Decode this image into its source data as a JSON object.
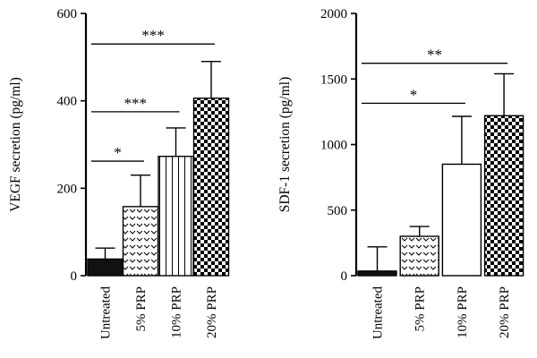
{
  "chart_data": [
    {
      "type": "bar",
      "categories": [
        "Untreated",
        "5% PRP",
        "10% PRP",
        "20% PRP"
      ],
      "values": [
        38,
        158,
        273,
        406
      ],
      "errors": [
        25,
        72,
        65,
        84
      ],
      "patterns": [
        "solid",
        "chevron",
        "vertical-stripes",
        "checker"
      ],
      "ylabel": "VEGF secretion (pg/ml)",
      "xlabel": "",
      "ylim": [
        0,
        600
      ],
      "yticks": [
        "0",
        "200",
        "400",
        "600"
      ],
      "significance": [
        {
          "from": 0,
          "to": 1,
          "label": "*",
          "y": 262
        },
        {
          "from": 0,
          "to": 2,
          "label": "***",
          "y": 375
        },
        {
          "from": 0,
          "to": 3,
          "label": "***",
          "y": 530
        }
      ]
    },
    {
      "type": "bar",
      "categories": [
        "Untreated",
        "5% PRP",
        "10% PRP",
        "20% PRP"
      ],
      "values": [
        35,
        300,
        850,
        1220
      ],
      "errors": [
        185,
        75,
        365,
        320
      ],
      "patterns": [
        "solid",
        "chevron",
        "white",
        "checker"
      ],
      "ylabel": "SDF-1 secretion (pg/ml)",
      "xlabel": "",
      "ylim": [
        0,
        2000
      ],
      "yticks": [
        "0",
        "500",
        "1000",
        "1500",
        "2000"
      ],
      "significance": [
        {
          "from": 0,
          "to": 2,
          "label": "*",
          "y": 1315
        },
        {
          "from": 0,
          "to": 3,
          "label": "**",
          "y": 1620
        }
      ]
    }
  ]
}
